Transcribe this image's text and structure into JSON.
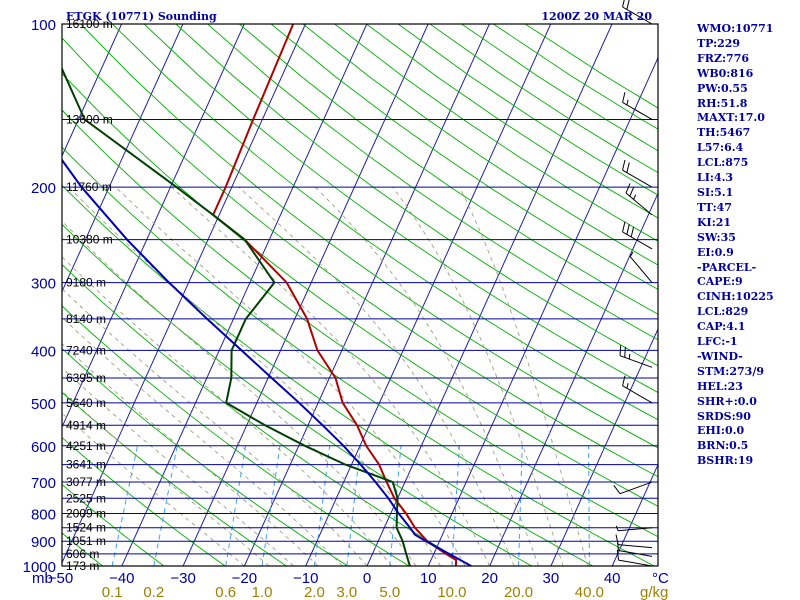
{
  "header": {
    "station_title": "ETGK (10771) Sounding",
    "time_title": "1200Z 20 MAR 20"
  },
  "indices": [
    "WMO:10771",
    "TP:229",
    "FRZ:776",
    "WB0:816",
    "PW:0.55",
    "RH:51.8",
    "MAXT:17.0",
    "TH:5467",
    "L57:6.4",
    "LCL:875",
    "LI:4.3",
    "SI:5.1",
    "TT:47",
    "KI:21",
    "SW:35",
    "EI:0.9",
    "-PARCEL-",
    "CAPE:9",
    "CINH:10225",
    "LCL:829",
    "CAP:4.1",
    "LFC:-1",
    "-WIND-",
    "STM:273/9",
    "HEL:23",
    "SHR+:0.0",
    "SRDS:90",
    "EHI:0.0",
    "BRN:0.5",
    "BSHR:19"
  ],
  "colors": {
    "frame": "#000000",
    "isobar": "#0000a0",
    "label": "#0000a0",
    "isotherm": "#2020a0",
    "dry_adiabat": "#00b000",
    "moist_adiabat": "#a0a080",
    "mixing_ratio": "#40a0ff",
    "temperature": "#b00000",
    "dewpoint": "#004000",
    "parcel": "#0000b0",
    "mixing_label": "#a08000",
    "wind_barb": "#000000"
  },
  "chart_data": {
    "type": "skew-t",
    "title": "ETGK (10771) Sounding 1200Z 20 MAR 20",
    "y_unit": "mb",
    "x_unit": "°C",
    "mixing_ratio_unit": "g/kg",
    "pressure_range_mb": [
      100,
      1000
    ],
    "temperature_ticks_c": [
      -50,
      -40,
      -30,
      -20,
      -10,
      0,
      10,
      20,
      30,
      40
    ],
    "pressure_labels": [
      {
        "p": 100,
        "label": "100"
      },
      {
        "p": 200,
        "label": "200"
      },
      {
        "p": 300,
        "label": "300"
      },
      {
        "p": 400,
        "label": "400"
      },
      {
        "p": 500,
        "label": "500"
      },
      {
        "p": 600,
        "label": "600"
      },
      {
        "p": 700,
        "label": "700"
      },
      {
        "p": 800,
        "label": "800"
      },
      {
        "p": 900,
        "label": "900"
      },
      {
        "p": 1000,
        "label": "1000"
      }
    ],
    "heights": [
      {
        "p": 100,
        "label": "16100 m"
      },
      {
        "p": 150,
        "label": "13600 m"
      },
      {
        "p": 200,
        "label": "11760 m"
      },
      {
        "p": 250,
        "label": "10380 m"
      },
      {
        "p": 300,
        "label": "9180 m"
      },
      {
        "p": 350,
        "label": "8140 m"
      },
      {
        "p": 400,
        "label": "7240 m"
      },
      {
        "p": 450,
        "label": "6395 m"
      },
      {
        "p": 500,
        "label": "5640 m"
      },
      {
        "p": 550,
        "label": "4914 m"
      },
      {
        "p": 600,
        "label": "4251 m"
      },
      {
        "p": 650,
        "label": "3641 m"
      },
      {
        "p": 700,
        "label": "3077 m"
      },
      {
        "p": 750,
        "label": "2525 m"
      },
      {
        "p": 800,
        "label": "2009 m"
      },
      {
        "p": 850,
        "label": "1524 m"
      },
      {
        "p": 900,
        "label": "1051 m"
      },
      {
        "p": 950,
        "label": "606 m"
      },
      {
        "p": 1000,
        "label": "173 m"
      }
    ],
    "mixing_ratio_labels": [
      {
        "w": 0.1,
        "label": "0.1"
      },
      {
        "w": 0.2,
        "label": "0.2"
      },
      {
        "w": 0.6,
        "label": "0.6"
      },
      {
        "w": 1,
        "label": "1.0"
      },
      {
        "w": 2,
        "label": "2.0"
      },
      {
        "w": 3,
        "label": "3.0"
      },
      {
        "w": 5,
        "label": "5.0"
      },
      {
        "w": 10,
        "label": "10.0"
      },
      {
        "w": 20,
        "label": "20.0"
      },
      {
        "w": 40,
        "label": "40.0"
      }
    ],
    "series": [
      {
        "key": "temperature",
        "points": [
          [
            1000,
            14.5
          ],
          [
            975,
            14.1
          ],
          [
            950,
            12
          ],
          [
            925,
            10
          ],
          [
            900,
            8
          ],
          [
            850,
            5
          ],
          [
            800,
            2.5
          ],
          [
            750,
            -0.5
          ],
          [
            700,
            -3
          ],
          [
            650,
            -5.5
          ],
          [
            600,
            -9
          ],
          [
            550,
            -12
          ],
          [
            500,
            -16
          ],
          [
            450,
            -19
          ],
          [
            400,
            -24
          ],
          [
            350,
            -28
          ],
          [
            300,
            -34
          ],
          [
            250,
            -44
          ],
          [
            225,
            -51
          ],
          [
            200,
            -51
          ],
          [
            150,
            -51.5
          ],
          [
            100,
            -52
          ]
        ]
      },
      {
        "key": "dewpoint",
        "points": [
          [
            1000,
            7
          ],
          [
            950,
            5.5
          ],
          [
            900,
            4
          ],
          [
            850,
            2
          ],
          [
            800,
            1
          ],
          [
            750,
            0
          ],
          [
            700,
            -2
          ],
          [
            650,
            -11
          ],
          [
            600,
            -19
          ],
          [
            550,
            -27
          ],
          [
            500,
            -35
          ],
          [
            450,
            -36
          ],
          [
            400,
            -38
          ],
          [
            350,
            -38
          ],
          [
            300,
            -36
          ],
          [
            250,
            -44
          ],
          [
            225,
            -51
          ],
          [
            200,
            -59
          ],
          [
            150,
            -79
          ],
          [
            100,
            -93
          ]
        ]
      },
      {
        "key": "parcel",
        "points": [
          [
            1000,
            17
          ],
          [
            950,
            12.5
          ],
          [
            900,
            7.8
          ],
          [
            875,
            5.5
          ],
          [
            850,
            4.2
          ],
          [
            800,
            1.3
          ],
          [
            750,
            -1.5
          ],
          [
            700,
            -4.8
          ],
          [
            650,
            -8.5
          ],
          [
            600,
            -12.7
          ],
          [
            550,
            -17.6
          ],
          [
            500,
            -23.1
          ],
          [
            450,
            -29.4
          ],
          [
            400,
            -36.4
          ],
          [
            350,
            -44.3
          ],
          [
            300,
            -53.2
          ],
          [
            250,
            -63.2
          ],
          [
            200,
            -74.5
          ],
          [
            150,
            -87.5
          ],
          [
            120,
            -95.5
          ]
        ]
      }
    ],
    "wind_barbs": [
      {
        "p": 1000,
        "dir": 280,
        "kt": 10
      },
      {
        "p": 960,
        "dir": 280,
        "kt": 10
      },
      {
        "p": 925,
        "dir": 275,
        "kt": 10
      },
      {
        "p": 850,
        "dir": 265,
        "kt": 5
      },
      {
        "p": 700,
        "dir": 250,
        "kt": 10
      },
      {
        "p": 500,
        "dir": 300,
        "kt": 15
      },
      {
        "p": 430,
        "dir": 290,
        "kt": 25
      },
      {
        "p": 300,
        "dir": 320,
        "kt": 5
      },
      {
        "p": 260,
        "dir": 300,
        "kt": 30
      },
      {
        "p": 225,
        "dir": 310,
        "kt": 25
      },
      {
        "p": 200,
        "dir": 300,
        "kt": 20
      },
      {
        "p": 150,
        "dir": 300,
        "kt": 15
      },
      {
        "p": 100,
        "dir": 300,
        "kt": 20
      }
    ]
  }
}
